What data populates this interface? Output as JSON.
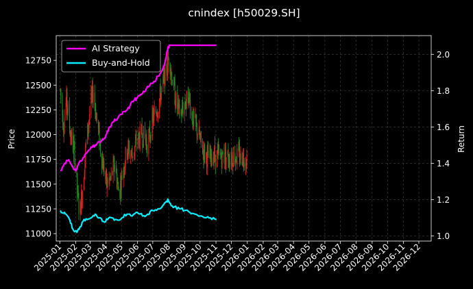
{
  "chart_data": {
    "type": "line",
    "title": "cnindex [h50029.SH]",
    "xlabel": "",
    "ylabel": "Price",
    "y2label": "Return",
    "x_ticks": [
      "2025-01",
      "2025-02",
      "2025-03",
      "2025-04",
      "2025-05",
      "2025-06",
      "2025-07",
      "2025-08",
      "2025-09",
      "2025-10",
      "2025-11",
      "2025-12",
      "2026-01",
      "2026-02",
      "2026-03",
      "2026-04",
      "2026-05",
      "2026-06",
      "2026-07",
      "2026-08",
      "2026-09",
      "2026-10",
      "2026-11",
      "2026-12"
    ],
    "xlim": [
      "2024-12-25",
      "2026-12-25"
    ],
    "ylim": [
      10925,
      13000
    ],
    "y_ticks": [
      11000,
      11250,
      11500,
      11750,
      12000,
      12250,
      12500,
      12750
    ],
    "y2lim": [
      0.972,
      2.103
    ],
    "y2_ticks": [
      1.0,
      1.2,
      1.4,
      1.6,
      1.8,
      2.0
    ],
    "grid": true,
    "legend_position": "top-left",
    "colors": {
      "background": "#000000",
      "up": "#dd1f1f",
      "down": "#1f8f1f",
      "ai": "#ff00ff",
      "bh": "#00f0ff"
    },
    "candles": {
      "start": "2025-01-02",
      "end": "2025-12-31",
      "close_path": [
        [
          0,
          12450
        ],
        [
          6,
          12100
        ],
        [
          12,
          12350
        ],
        [
          20,
          12000
        ],
        [
          28,
          11800
        ],
        [
          34,
          11350
        ],
        [
          38,
          11200
        ],
        [
          44,
          11500
        ],
        [
          50,
          11900
        ],
        [
          58,
          12250
        ],
        [
          64,
          12450
        ],
        [
          72,
          12100
        ],
        [
          80,
          11800
        ],
        [
          90,
          11500
        ],
        [
          98,
          11550
        ],
        [
          106,
          11700
        ],
        [
          114,
          11400
        ],
        [
          122,
          11650
        ],
        [
          130,
          11850
        ],
        [
          140,
          11800
        ],
        [
          150,
          11950
        ],
        [
          160,
          12000
        ],
        [
          170,
          11900
        ],
        [
          180,
          12150
        ],
        [
          190,
          12300
        ],
        [
          200,
          12500
        ],
        [
          206,
          12650
        ],
        [
          212,
          12800
        ],
        [
          218,
          12550
        ],
        [
          226,
          12300
        ],
        [
          234,
          12200
        ],
        [
          242,
          12300
        ],
        [
          250,
          12400
        ],
        [
          258,
          12150
        ],
        [
          266,
          12050
        ],
        [
          274,
          11900
        ],
        [
          282,
          11800
        ],
        [
          290,
          11750
        ],
        [
          298,
          11800
        ],
        [
          304,
          11780
        ]
      ]
    },
    "series": [
      {
        "name": "AI Strategy",
        "axis": "right",
        "points": [
          [
            0,
            1.36
          ],
          [
            8,
            1.4
          ],
          [
            16,
            1.42
          ],
          [
            24,
            1.38
          ],
          [
            30,
            1.36
          ],
          [
            36,
            1.4
          ],
          [
            44,
            1.43
          ],
          [
            52,
            1.46
          ],
          [
            60,
            1.49
          ],
          [
            68,
            1.5
          ],
          [
            76,
            1.52
          ],
          [
            84,
            1.53
          ],
          [
            90,
            1.56
          ],
          [
            96,
            1.6
          ],
          [
            104,
            1.63
          ],
          [
            112,
            1.65
          ],
          [
            120,
            1.67
          ],
          [
            128,
            1.69
          ],
          [
            136,
            1.72
          ],
          [
            144,
            1.75
          ],
          [
            150,
            1.76
          ],
          [
            158,
            1.78
          ],
          [
            166,
            1.8
          ],
          [
            174,
            1.83
          ],
          [
            182,
            1.85
          ],
          [
            190,
            1.88
          ],
          [
            198,
            1.91
          ],
          [
            204,
            1.96
          ],
          [
            208,
            2.02
          ],
          [
            212,
            2.05
          ],
          [
            230,
            2.05
          ],
          [
            260,
            2.05
          ],
          [
            304,
            2.05
          ]
        ]
      },
      {
        "name": "Buy-and-Hold",
        "axis": "right",
        "points": [
          [
            0,
            1.14
          ],
          [
            8,
            1.13
          ],
          [
            14,
            1.11
          ],
          [
            20,
            1.07
          ],
          [
            26,
            1.03
          ],
          [
            32,
            1.02
          ],
          [
            38,
            1.05
          ],
          [
            44,
            1.08
          ],
          [
            52,
            1.09
          ],
          [
            60,
            1.1
          ],
          [
            68,
            1.12
          ],
          [
            76,
            1.1
          ],
          [
            84,
            1.08
          ],
          [
            92,
            1.09
          ],
          [
            100,
            1.1
          ],
          [
            110,
            1.09
          ],
          [
            120,
            1.1
          ],
          [
            130,
            1.12
          ],
          [
            140,
            1.11
          ],
          [
            150,
            1.13
          ],
          [
            160,
            1.11
          ],
          [
            170,
            1.12
          ],
          [
            180,
            1.14
          ],
          [
            190,
            1.15
          ],
          [
            200,
            1.17
          ],
          [
            206,
            1.19
          ],
          [
            210,
            1.2
          ],
          [
            214,
            1.18
          ],
          [
            222,
            1.16
          ],
          [
            232,
            1.15
          ],
          [
            242,
            1.14
          ],
          [
            252,
            1.13
          ],
          [
            262,
            1.12
          ],
          [
            272,
            1.11
          ],
          [
            282,
            1.1
          ],
          [
            292,
            1.1
          ],
          [
            304,
            1.09
          ]
        ]
      }
    ]
  }
}
